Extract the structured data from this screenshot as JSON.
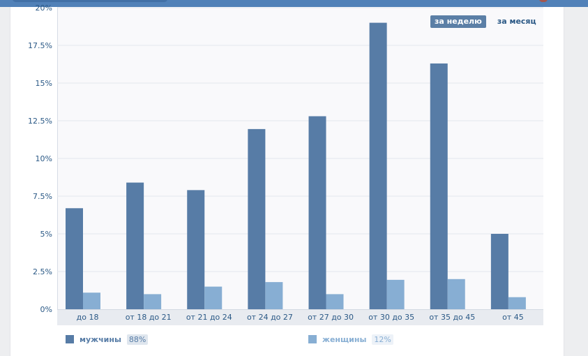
{
  "colors": {
    "men": "#577ca6",
    "women": "#87aed3",
    "tick_text": "#2a5885",
    "grid": "#e4e7ec"
  },
  "period": {
    "week_label": "за неделю",
    "month_label": "за месяц",
    "active": "week"
  },
  "legend": {
    "men_label": "мужчины",
    "men_share": "88%",
    "women_label": "женщины",
    "women_share": "12%"
  },
  "chart_data": {
    "type": "bar",
    "title": "",
    "xlabel": "",
    "ylabel": "",
    "categories": [
      "до 18",
      "от 18 до 21",
      "от 21 до 24",
      "от 24 до 27",
      "от 27 до 30",
      "от 30 до 35",
      "от 35 до 45",
      "от 45"
    ],
    "series": [
      {
        "name": "мужчины",
        "values": [
          6.7,
          8.4,
          7.9,
          11.95,
          12.8,
          19.0,
          16.3,
          5.0
        ]
      },
      {
        "name": "женщины",
        "values": [
          1.1,
          1.0,
          1.5,
          1.8,
          1.0,
          1.95,
          2.0,
          0.8
        ]
      }
    ],
    "ylim": [
      0,
      20
    ],
    "yticks": [
      0,
      2.5,
      5,
      7.5,
      10,
      12.5,
      15,
      17.5,
      20
    ],
    "ytick_labels": [
      "0%",
      "2.5%",
      "5%",
      "7.5%",
      "10%",
      "12.5%",
      "15%",
      "17.5%",
      "20%"
    ],
    "grid": true,
    "legend_position": "bottom"
  }
}
